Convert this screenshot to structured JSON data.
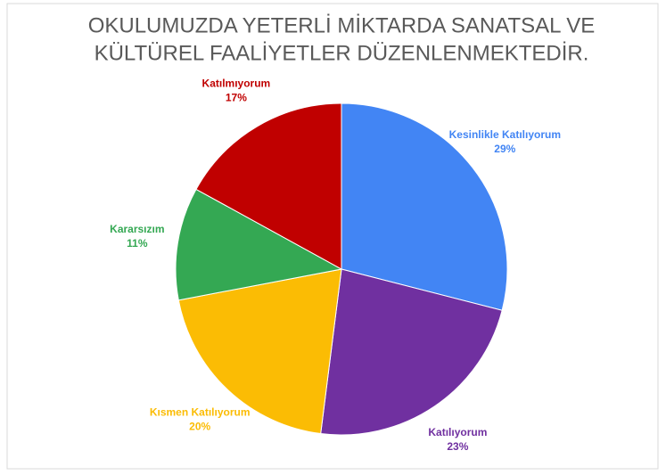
{
  "chart_data": {
    "type": "pie",
    "title": [
      "OKULUMUZDA YETERLİ MİKTARDA SANATSAL VE",
      "KÜLTÜREL FAALİYETLER DÜZENLENMEKTEDİR."
    ],
    "categories": [
      "Kesinlikle Katılıyorum",
      "Katılıyorum",
      "Kısmen Katılıyorum",
      "Kararsızım",
      "Katılmıyorum"
    ],
    "values": [
      29,
      23,
      20,
      11,
      17
    ],
    "value_labels": [
      "29%",
      "23%",
      "20%",
      "11%",
      "17%"
    ],
    "colors": [
      "#4285f4",
      "#7030a0",
      "#fbbc04",
      "#34a853",
      "#c00000"
    ]
  }
}
